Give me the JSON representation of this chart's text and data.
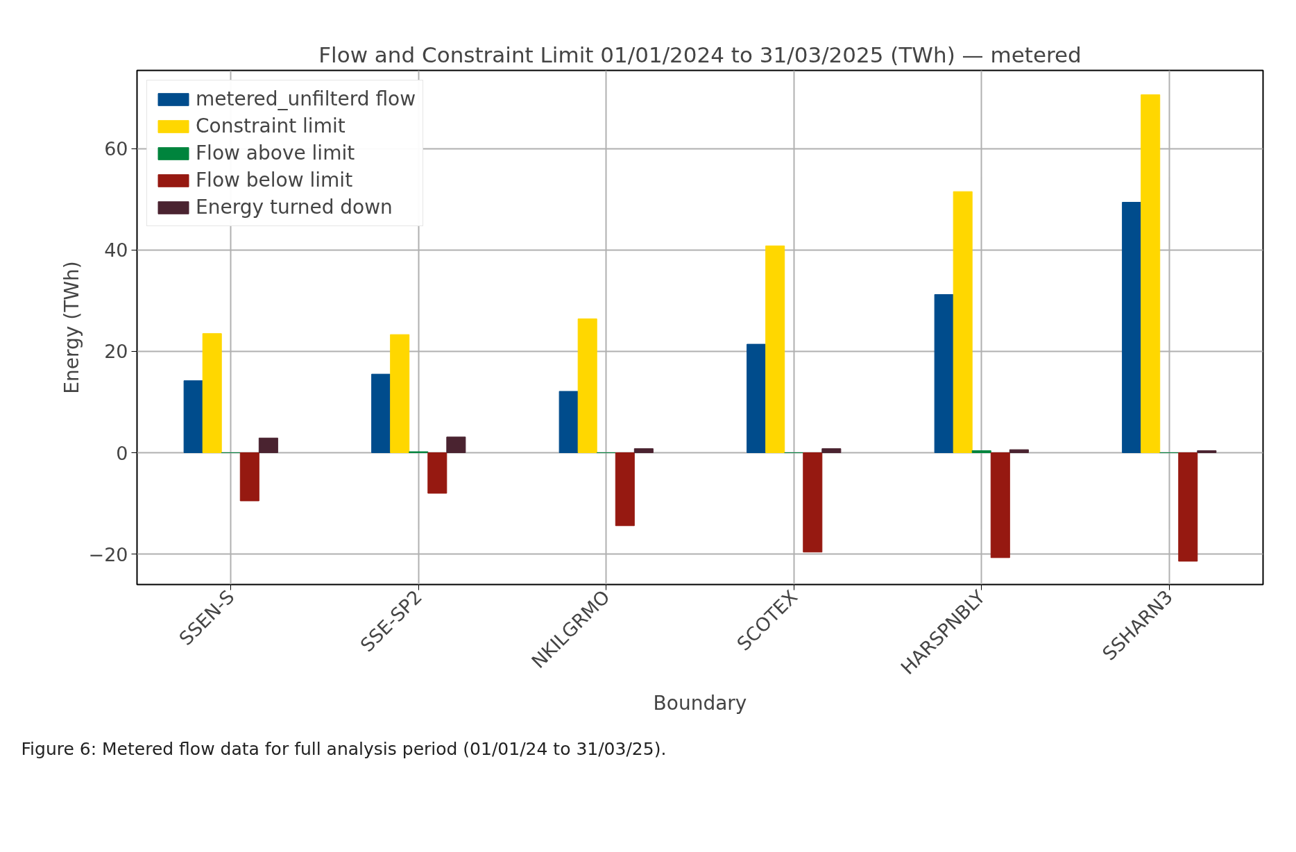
{
  "chart_data": {
    "type": "bar",
    "title": "Flow and Constraint Limit 01/01/2024 to 31/03/2025 (TWh) — metered",
    "xlabel": "Boundary",
    "ylabel": "Energy (TWh)",
    "categories": [
      "SSEN-S",
      "SSE-SP2",
      "NKILGRMO",
      "SCOTEX",
      "HARSPNBLY",
      "SSHARN3"
    ],
    "series": [
      {
        "name": "metered_unfilterd flow",
        "color": "#004c8c",
        "values": [
          14.2,
          15.5,
          12.1,
          21.4,
          31.2,
          49.4
        ]
      },
      {
        "name": "Constraint limit",
        "color": "#ffd700",
        "values": [
          23.5,
          23.3,
          26.4,
          40.8,
          51.5,
          70.6
        ]
      },
      {
        "name": "Flow above limit",
        "color": "#00843d",
        "values": [
          0,
          0.2,
          0,
          0,
          0.4,
          0
        ]
      },
      {
        "name": "Flow below limit",
        "color": "#961911",
        "values": [
          -9.5,
          -8,
          -14.4,
          -19.6,
          -20.7,
          -21.4
        ]
      },
      {
        "name": "Energy turned down",
        "color": "#4a2330",
        "values": [
          2.9,
          3.1,
          0.8,
          0.8,
          0.6,
          0.4
        ]
      }
    ],
    "ylim": [
      -26,
      75.4
    ],
    "yticks": [
      {
        "value": -20,
        "label": "−20"
      },
      0,
      20,
      40,
      60
    ],
    "grid": true,
    "legend": "top left",
    "annotations": [
      "Figure 6: Metered flow data for full analysis period (01/01/24 to 31/03/25)."
    ]
  }
}
